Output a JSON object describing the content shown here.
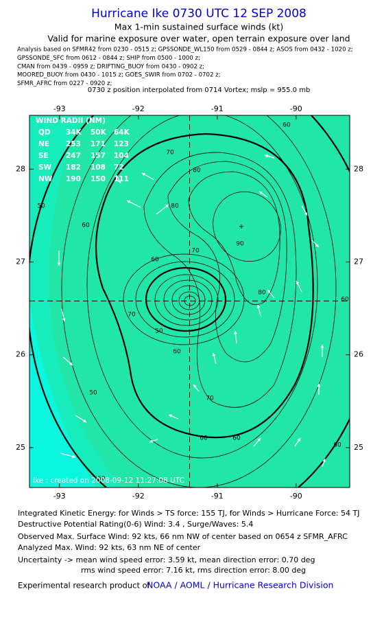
{
  "header": {
    "title": "Hurricane Ike 0730 UTC 12 SEP 2008",
    "subtitle": "Max 1-min sustained surface winds (kt)",
    "valid": "Valid for marine exposure over water, open terrain exposure over land",
    "analysis_lines": [
      "Analysis based on   SFMR42 from 0230 - 0515 z;  GPSSONDE_WL150 from 0529 - 0844 z;  ASOS from 0432 - 1020 z;",
      "GPSSONDE_SFC from 0612 - 0844 z;  SHIP from 0500 - 1000 z;",
      "CMAN from 0439 - 0959 z;  DRIFTING_BUOY from 0430 - 0902 z;",
      "MOORED_BUOY from 0430 - 1015 z;  GOES_SWIR from 0702 - 0702 z;",
      "SFMR_AFRC from 0227 - 0920 z;"
    ],
    "position": "0730 z position interpolated from 0714 Vortex; mslp = 955.0 mb"
  },
  "map": {
    "xlim": [
      -93.38,
      -89.32
    ],
    "ylim": [
      24.57,
      28.58
    ],
    "xticks": [
      -93,
      -92,
      -91,
      -90
    ],
    "yticks": [
      25,
      26,
      27,
      28
    ],
    "center": [
      -91.35,
      26.58
    ],
    "contour_labels": [
      60,
      70,
      80,
      90,
      70,
      80,
      60,
      50,
      60,
      50,
      60,
      70,
      60,
      60,
      50,
      60,
      50,
      80,
      70,
      60
    ],
    "wind_radii": {
      "title": "WIND RADII (NM)",
      "header": [
        "QD",
        "34K",
        "50K",
        "64K"
      ],
      "rows": [
        [
          "NE",
          253,
          171,
          123
        ],
        [
          "SE",
          247,
          157,
          104
        ],
        [
          "SW",
          182,
          108,
          72
        ],
        [
          "NW",
          190,
          150,
          111
        ]
      ]
    },
    "credit": "Ike : created on 2008-09-12 11:27:08 UTC"
  },
  "footer": {
    "lines": [
      "Integrated Kinetic Energy:  for Winds > TS force: 155 TJ,  for Winds > Hurricane Force: 54 TJ",
      "Destructive Potential Rating(0-6)   Wind: 3.4 , Surge/Waves: 5.4",
      "Observed Max. Surface Wind: 92 kts, 66 nm NW of center based on 0654 z SFMR_AFRC",
      "Analyzed Max. Wind: 92 kts, 63 nm NE of center",
      "Uncertainty -> mean wind speed error: 3.59 kt,   mean direction error: 0.70 deg",
      "rms wind speed error: 7.16 kt,   rms direction error: 8.00 deg"
    ],
    "product": "Experimental research product of",
    "link": "NOAA / AOML / Hurricane Research Division"
  }
}
